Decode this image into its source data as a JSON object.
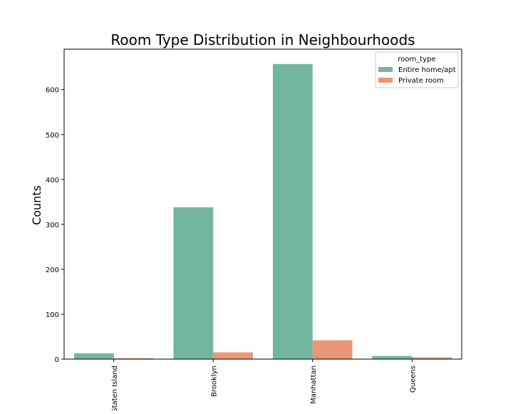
{
  "chart_data": {
    "type": "bar",
    "title": "Room Type Distribution in Neighbourhoods",
    "xlabel": "",
    "ylabel": "Counts",
    "categories": [
      "Staten Island",
      "Brooklyn",
      "Manhattan",
      "Queens"
    ],
    "series": [
      {
        "name": "Entire home/apt",
        "values": [
          13,
          338,
          657,
          7
        ],
        "color": "#72b6a1"
      },
      {
        "name": "Private room",
        "values": [
          2,
          15,
          42,
          4
        ],
        "color": "#e99675"
      }
    ],
    "ylim": [
      0,
      690
    ],
    "yticks": [
      0,
      100,
      200,
      300,
      400,
      500,
      600
    ],
    "legend": {
      "title": "room_type",
      "position": "top-right"
    },
    "grid": false
  }
}
